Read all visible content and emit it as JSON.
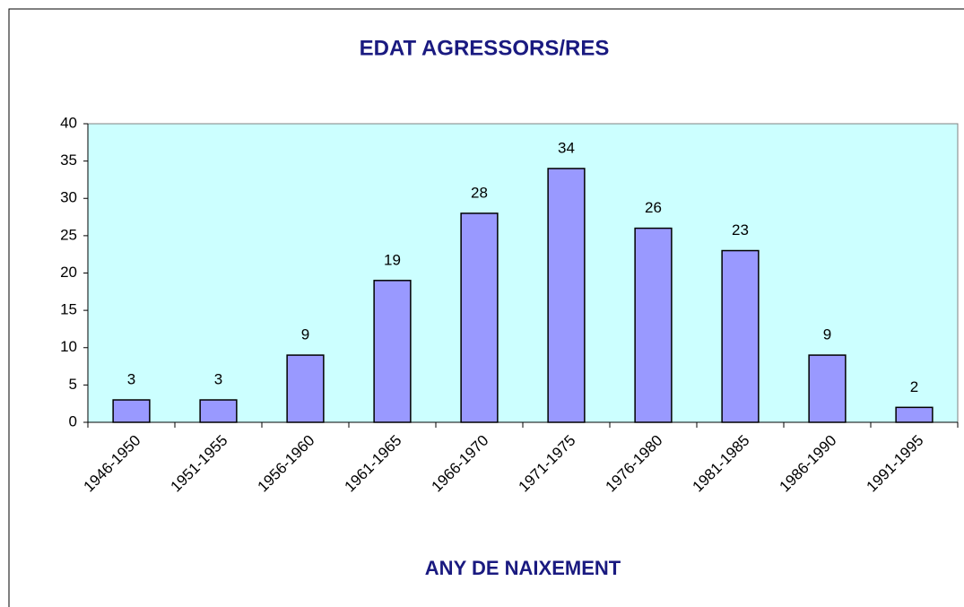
{
  "chart_data": {
    "type": "bar",
    "title": "EDAT AGRESSORS/RES",
    "x_label": "ANY DE NAIXEMENT",
    "categories": [
      "1946-1950",
      "1951-1955",
      "1956-1960",
      "1961-1965",
      "1966-1970",
      "1971-1975",
      "1976-1980",
      "1981-1985",
      "1986-1990",
      "1991-1995"
    ],
    "values": [
      3,
      3,
      9,
      19,
      28,
      34,
      26,
      23,
      9,
      2
    ],
    "color": "#9999ff",
    "plot_background": "#ccffff",
    "ylim": [
      0,
      40
    ],
    "yticks": [
      0,
      5,
      10,
      15,
      20,
      25,
      30,
      35,
      40
    ],
    "grid": false
  }
}
